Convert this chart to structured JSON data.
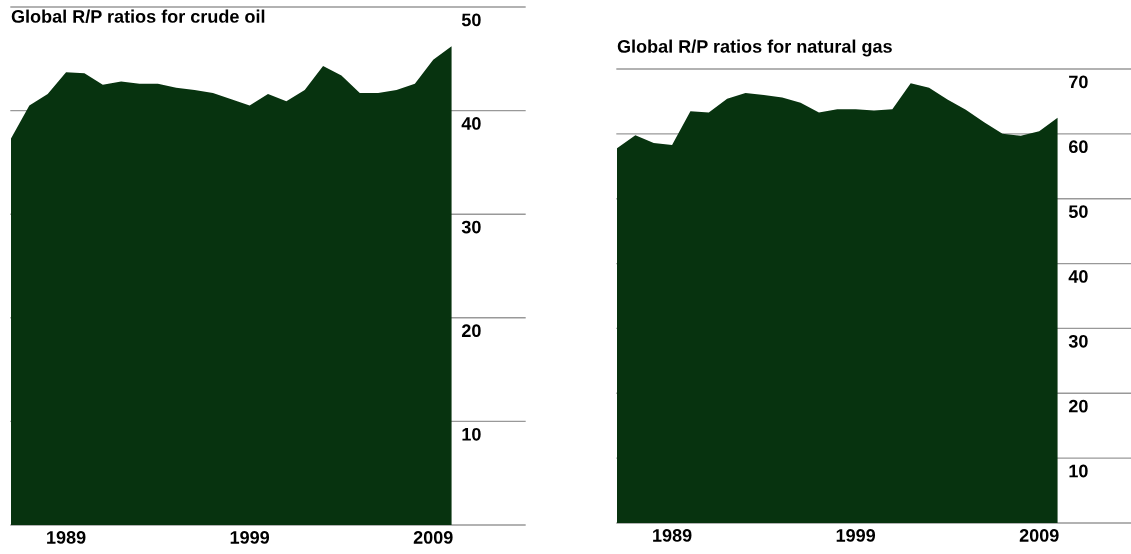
{
  "chart_data": [
    {
      "type": "area",
      "title": "Global R/P ratios for crude oil",
      "x": [
        1986,
        1987,
        1988,
        1989,
        1990,
        1991,
        1992,
        1993,
        1994,
        1995,
        1996,
        1997,
        1998,
        1999,
        2000,
        2001,
        2002,
        2003,
        2004,
        2005,
        2006,
        2007,
        2008,
        2009,
        2010
      ],
      "series": [
        {
          "color": "#07330f",
          "values": [
            37.3,
            40.5,
            41.6,
            43.7,
            43.6,
            42.5,
            42.8,
            42.6,
            42.6,
            42.2,
            42.0,
            41.7,
            41.1,
            40.5,
            41.6,
            40.9,
            42.0,
            44.3,
            43.4,
            41.7,
            41.7,
            42.0,
            42.6,
            44.9,
            46.2
          ]
        }
      ],
      "xlim": [
        1986,
        2014
      ],
      "xticks": [
        1989,
        1999,
        2009
      ],
      "ylim": [
        0,
        50
      ],
      "yticks": [
        10,
        20,
        30,
        40,
        50
      ],
      "grid": "y"
    },
    {
      "type": "area",
      "title": "Global R/P ratios for natural gas",
      "x": [
        1986,
        1987,
        1988,
        1989,
        1990,
        1991,
        1992,
        1993,
        1994,
        1995,
        1996,
        1997,
        1998,
        1999,
        2000,
        2001,
        2002,
        2003,
        2004,
        2005,
        2006,
        2007,
        2008,
        2009,
        2010
      ],
      "series": [
        {
          "color": "#07330f",
          "values": [
            57.8,
            59.8,
            58.6,
            58.3,
            63.5,
            63.3,
            65.4,
            66.3,
            66.0,
            65.6,
            64.8,
            63.3,
            63.8,
            63.8,
            63.6,
            63.8,
            67.8,
            67.1,
            65.3,
            63.7,
            61.8,
            60.0,
            59.7,
            60.4,
            62.5
          ]
        }
      ],
      "xlim": [
        1986,
        2014
      ],
      "xticks": [
        1989,
        1999,
        2009
      ],
      "ylim": [
        0,
        70
      ],
      "yticks": [
        10,
        20,
        30,
        40,
        50,
        60,
        70
      ],
      "grid": "y"
    }
  ]
}
